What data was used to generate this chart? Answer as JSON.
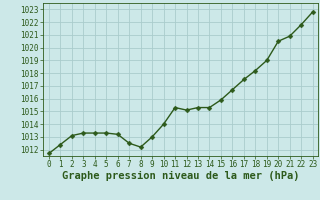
{
  "x": [
    0,
    1,
    2,
    3,
    4,
    5,
    6,
    7,
    8,
    9,
    10,
    11,
    12,
    13,
    14,
    15,
    16,
    17,
    18,
    19,
    20,
    21,
    22,
    23
  ],
  "y": [
    1011.7,
    1012.4,
    1013.1,
    1013.3,
    1013.3,
    1013.3,
    1013.2,
    1012.5,
    1012.2,
    1013.0,
    1014.0,
    1015.3,
    1015.1,
    1015.3,
    1015.3,
    1015.9,
    1016.7,
    1017.5,
    1018.2,
    1019.0,
    1020.5,
    1020.9,
    1021.8,
    1022.8
  ],
  "line_color": "#2d5a1b",
  "marker_color": "#2d5a1b",
  "bg_color": "#cce8e8",
  "plot_bg_color": "#cce8e8",
  "grid_color": "#aacccc",
  "xlabel": "Graphe pression niveau de la mer (hPa)",
  "xlabel_color": "#2d5a1b",
  "tick_color": "#2d5a1b",
  "ylim": [
    1011.5,
    1023.5
  ],
  "xlim": [
    -0.5,
    23.5
  ],
  "yticks": [
    1012,
    1013,
    1014,
    1015,
    1016,
    1017,
    1018,
    1019,
    1020,
    1021,
    1022,
    1023
  ],
  "xticks": [
    0,
    1,
    2,
    3,
    4,
    5,
    6,
    7,
    8,
    9,
    10,
    11,
    12,
    13,
    14,
    15,
    16,
    17,
    18,
    19,
    20,
    21,
    22,
    23
  ],
  "xtick_labels": [
    "0",
    "1",
    "2",
    "3",
    "4",
    "5",
    "6",
    "7",
    "8",
    "9",
    "10",
    "11",
    "12",
    "13",
    "14",
    "15",
    "16",
    "17",
    "18",
    "19",
    "20",
    "21",
    "22",
    "23"
  ],
  "ytick_fontsize": 5.5,
  "xtick_fontsize": 5.5,
  "xlabel_fontsize": 7.5,
  "linewidth": 1.0,
  "markersize": 2.5
}
